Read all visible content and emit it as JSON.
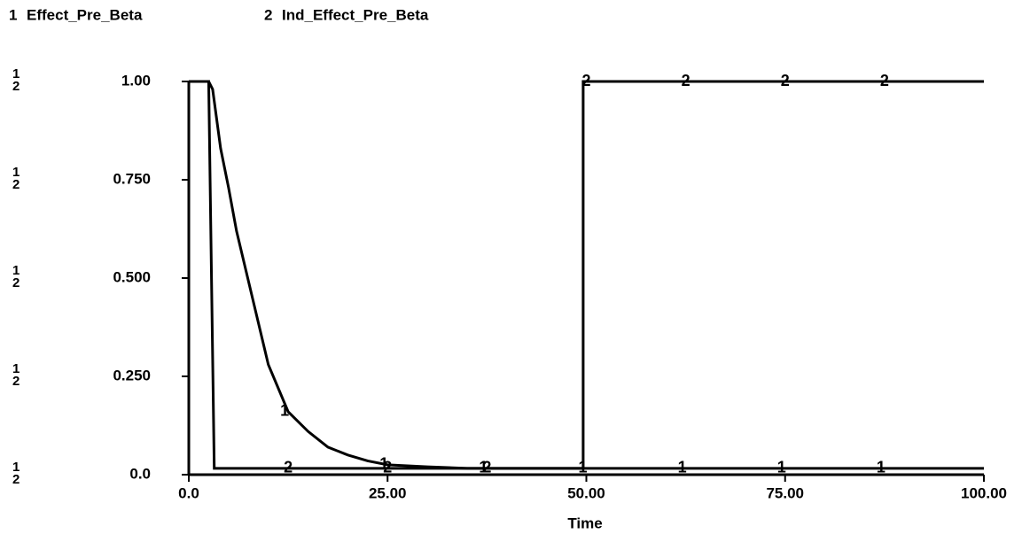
{
  "chart_data": {
    "type": "line",
    "x_label": "Time",
    "xlim": [
      0,
      100
    ],
    "xticks": [
      {
        "value": 0,
        "label": "0.0"
      },
      {
        "value": 25,
        "label": "25.00"
      },
      {
        "value": 50,
        "label": "50.00"
      },
      {
        "value": 75,
        "label": "75.00"
      },
      {
        "value": 100,
        "label": "100.00"
      }
    ],
    "ylim": [
      0,
      1
    ],
    "yticks": [
      {
        "value": 0,
        "label": "0.0"
      },
      {
        "value": 0.25,
        "label": "0.250"
      },
      {
        "value": 0.5,
        "label": "0.500"
      },
      {
        "value": 0.75,
        "label": "0.750"
      },
      {
        "value": 1,
        "label": "1.00"
      }
    ],
    "series": [
      {
        "id": "1",
        "name": "Effect_Pre_Beta",
        "color": "#000000",
        "x": [
          0,
          2.5,
          3,
          4,
          5,
          6,
          8,
          10,
          12.5,
          15,
          17.5,
          20,
          22.5,
          25,
          30,
          35,
          50,
          100
        ],
        "values": [
          1,
          1,
          0.98,
          0.83,
          0.73,
          0.62,
          0.45,
          0.28,
          0.16,
          0.11,
          0.07,
          0.05,
          0.035,
          0.025,
          0.02,
          0.016,
          0.016,
          0.016
        ]
      },
      {
        "id": "2",
        "name": "Ind_Effect_Pre_Beta",
        "color": "#000000",
        "x": [
          0,
          2.5,
          3.2,
          49.6,
          49.6,
          100
        ],
        "values": [
          1,
          1,
          0.016,
          0.016,
          1,
          1
        ]
      }
    ]
  }
}
